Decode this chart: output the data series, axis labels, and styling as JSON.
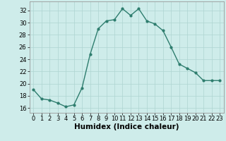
{
  "x": [
    0,
    1,
    2,
    3,
    4,
    5,
    6,
    7,
    8,
    9,
    10,
    11,
    12,
    13,
    14,
    15,
    16,
    17,
    18,
    19,
    20,
    21,
    22,
    23
  ],
  "y": [
    19.0,
    17.5,
    17.3,
    16.8,
    16.2,
    16.5,
    19.3,
    24.8,
    29.0,
    30.3,
    30.5,
    32.3,
    31.2,
    32.3,
    30.3,
    29.8,
    28.7,
    26.0,
    23.2,
    22.5,
    21.8,
    20.5,
    20.5,
    20.5
  ],
  "line_color": "#2e7d6e",
  "marker": "o",
  "marker_size": 2.0,
  "line_width": 1.0,
  "bg_color": "#ceecea",
  "grid_color": "#aed4d1",
  "xlabel": "Humidex (Indice chaleur)",
  "xlabel_fontsize": 7.5,
  "xtick_labels": [
    "0",
    "1",
    "2",
    "3",
    "4",
    "5",
    "6",
    "7",
    "8",
    "9",
    "10",
    "11",
    "12",
    "13",
    "14",
    "15",
    "16",
    "17",
    "18",
    "19",
    "20",
    "21",
    "22",
    "23"
  ],
  "ytick_values": [
    16,
    18,
    20,
    22,
    24,
    26,
    28,
    30,
    32
  ],
  "ylim": [
    15.2,
    33.5
  ],
  "xlim": [
    -0.5,
    23.5
  ],
  "tick_fontsize": 6.0
}
